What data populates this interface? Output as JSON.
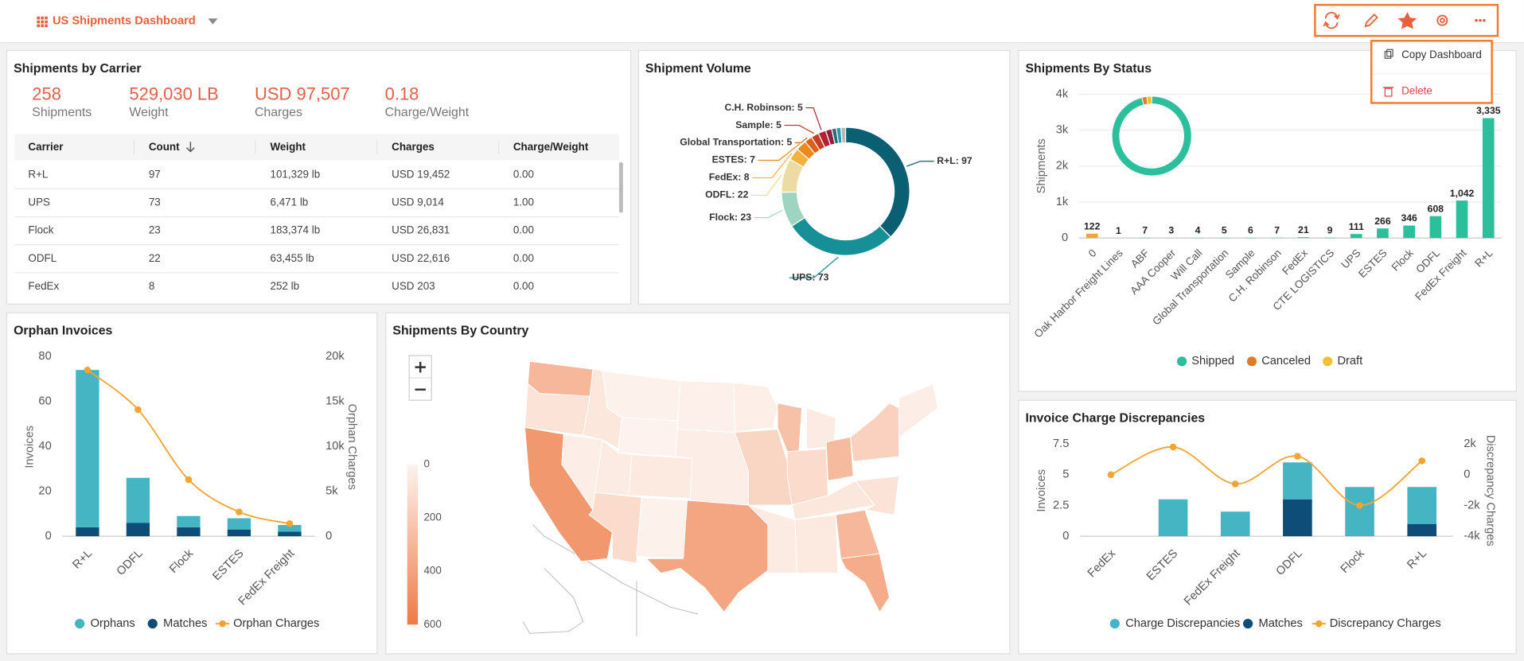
{
  "header": {
    "title": "US Shipments Dashboard"
  },
  "menu": {
    "items": [
      "Copy Dashboard",
      "Delete"
    ]
  },
  "carriers": {
    "title": "Shipments by Carrier",
    "kpis": [
      {
        "value": "258",
        "label": "Shipments"
      },
      {
        "value": "529,030 LB",
        "label": "Weight"
      },
      {
        "value": "USD 97,507",
        "label": "Charges"
      },
      {
        "value": "0.18",
        "label": "Charge/Weight"
      }
    ],
    "table": {
      "columns": [
        "Carrier",
        "Count",
        "Weight",
        "Charges",
        "Charge/Weight"
      ],
      "rows": [
        [
          "R+L",
          "97",
          "101,329 lb",
          "USD 19,452",
          "0.00"
        ],
        [
          "UPS",
          "73",
          "6,471 lb",
          "USD 9,014",
          "1.00"
        ],
        [
          "Flock",
          "23",
          "183,374 lb",
          "USD 26,831",
          "0.00"
        ],
        [
          "ODFL",
          "22",
          "63,455 lb",
          "USD 22,616",
          "0.00"
        ],
        [
          "FedEx",
          "8",
          "252 lb",
          "USD 203",
          "0.00"
        ]
      ]
    }
  },
  "chart_data": [
    {
      "type": "pie",
      "title": "Shipment Volume",
      "values": [
        97,
        73,
        23,
        22,
        8,
        7,
        5,
        5,
        5,
        4,
        3,
        3,
        3
      ],
      "value_labels": [
        "R+L: 97",
        "UPS: 73",
        "Flock: 23",
        "ODFL: 22",
        "FedEx: 8",
        "ESTES: 7",
        "Global Transportation: 5",
        "Sample: 5",
        "C.H. Robinson: 5",
        null,
        null,
        null,
        null
      ],
      "colors": [
        "#0b5f73",
        "#168f97",
        "#9dd5c1",
        "#ecdba3",
        "#f3b23c",
        "#e88a1f",
        "#d8621a",
        "#c63d24",
        "#b02232",
        "#8e1f3f",
        "#1d6f82",
        "#2a9aa8",
        "#b8b8b8"
      ]
    },
    {
      "type": "bar",
      "title": "Shipments By Status",
      "ylabel": "Shipments",
      "categories": [
        "0",
        "Oak Harbor Freight Lines",
        "ABF",
        "AAA Cooper",
        "Will Call",
        "Global Transportation",
        "Sample",
        "C.H. Robinson",
        "FedEx",
        "CTE LOGISTICS",
        "UPS",
        "ESTES",
        "Flock",
        "ODFL",
        "FedEx Freight",
        "R+L"
      ],
      "values": [
        122,
        1,
        7,
        3,
        4,
        5,
        6,
        7,
        21,
        9,
        111,
        266,
        346,
        608,
        1042,
        3335
      ],
      "value_labels": [
        "122",
        "1",
        "7",
        "3",
        "4",
        "5",
        "6",
        "7",
        "21",
        "9",
        "111",
        "266",
        "346",
        "608",
        "1,042",
        "3,335"
      ],
      "colors": [
        "#f0a830",
        "#2bbf9c",
        "#2bbf9c",
        "#2bbf9c",
        "#2bbf9c",
        "#2bbf9c",
        "#2bbf9c",
        "#2bbf9c",
        "#2bbf9c",
        "#2bbf9c",
        "#2bbf9c",
        "#2bbf9c",
        "#2bbf9c",
        "#2bbf9c",
        "#2bbf9c",
        "#2bbf9c"
      ],
      "ylim": [
        0,
        4000
      ],
      "yticks": [
        0,
        {
          "value": 1000,
          "label": "1k"
        },
        {
          "value": 2000,
          "label": "2k"
        },
        {
          "value": 3000,
          "label": "3k"
        },
        {
          "value": 4000,
          "label": "4k"
        }
      ],
      "grid": true,
      "legend": [
        {
          "name": "Shipped",
          "color": "#2bbf9c",
          "value": 96
        },
        {
          "name": "Canceled",
          "color": "#e07b2a",
          "value": 2
        },
        {
          "name": "Draft",
          "color": "#f2c12e",
          "value": 2
        }
      ]
    },
    {
      "type": "combo",
      "title": "Orphan Invoices",
      "ylabel": "Invoices",
      "y2label": "Orphan Charges",
      "categories": [
        "R+L",
        "ODFL",
        "Flock",
        "ESTES",
        "FedEx Freight"
      ],
      "series": [
        {
          "name": "Orphans",
          "color": "#45b5c4",
          "values": [
            70,
            20,
            5,
            5,
            3
          ]
        },
        {
          "name": "Matches",
          "color": "#0d4d78",
          "values": [
            4,
            6,
            4,
            3,
            2
          ]
        },
        {
          "name": "Orphan Charges",
          "color": "#f5a431",
          "values": [
            18500,
            14100,
            6300,
            2700,
            1400
          ],
          "axis": "y2"
        }
      ],
      "ylim": [
        0,
        80
      ],
      "yticks": [
        0,
        20,
        40,
        60,
        80
      ],
      "y2lim": [
        0,
        20000
      ],
      "y2ticks": [
        0,
        {
          "value": 5000,
          "label": "5k"
        },
        {
          "value": 10000,
          "label": "10k"
        },
        {
          "value": 15000,
          "label": "15k"
        },
        {
          "value": 20000,
          "label": "20k"
        }
      ],
      "grid": false
    },
    {
      "type": "combo",
      "title": "Invoice Charge Discrepancies",
      "ylabel": "Invoices",
      "y2label": "Discrepancy Charges",
      "categories": [
        "FedEx",
        "ESTES",
        "FedEx Freight",
        "ODFL",
        "Flock",
        "R+L"
      ],
      "series": [
        {
          "name": "Charge Discrepancies",
          "color": "#45b5c4",
          "values": [
            0,
            3,
            2,
            3,
            4,
            3
          ]
        },
        {
          "name": "Matches",
          "color": "#0d4d78",
          "values": [
            0,
            0,
            0,
            3,
            0,
            1
          ]
        },
        {
          "name": "Discrepancy Charges",
          "color": "#f5a431",
          "values": [
            0,
            1800,
            -600,
            1200,
            -2000,
            900
          ],
          "axis": "y2"
        }
      ],
      "ylim": [
        0,
        7.5
      ],
      "yticks": [
        0,
        2.5,
        5,
        7.5
      ],
      "y2lim": [
        -4000,
        2000
      ],
      "y2ticks": [
        {
          "value": -4000,
          "label": "-4k"
        },
        {
          "value": -2000,
          "label": "-2k"
        },
        0,
        {
          "value": 2000,
          "label": "2k"
        }
      ],
      "grid": false
    },
    {
      "type": "choropleth",
      "title": "Shipments By Country",
      "values": [
        300,
        80,
        450,
        30,
        60,
        10,
        5,
        40,
        120,
        50,
        10,
        15,
        30,
        380,
        20,
        150,
        250,
        120,
        40,
        280,
        60,
        40,
        50,
        300,
        350,
        80,
        170,
        30
      ],
      "colors": [
        "#fdf3ee",
        "#ee7a45"
      ],
      "lim": [
        0,
        600
      ],
      "ticks": [
        0,
        200,
        400,
        600
      ]
    }
  ]
}
